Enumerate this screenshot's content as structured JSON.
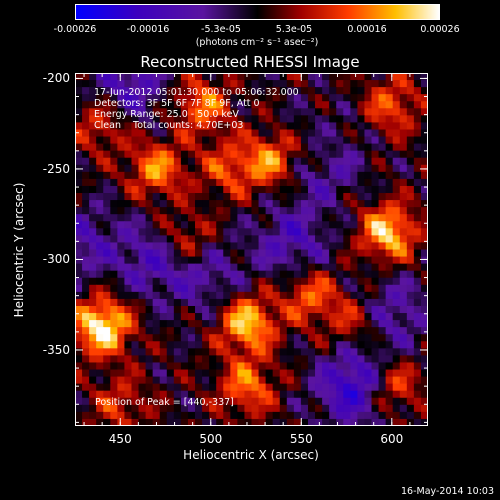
{
  "colorbar": {
    "ticks": [
      "-0.00026",
      "-0.00016",
      "-5.3e-05",
      "5.3e-05",
      "0.00016",
      "0.00026"
    ],
    "unit": "(photons cm⁻² s⁻¹ asec⁻²)"
  },
  "chart_data": {
    "type": "heatmap",
    "title": "Reconstructed RHESSI Image",
    "xlabel": "Heliocentric X (arcsec)",
    "ylabel": "Heliocentric Y (arcsec)",
    "xlim": [
      425,
      620
    ],
    "ylim": [
      -392,
      -197
    ],
    "xticks": [
      450,
      500,
      550,
      600
    ],
    "yticks": [
      -200,
      -250,
      -300,
      -350
    ],
    "xtick_labels": [
      "450",
      "500",
      "550",
      "600"
    ],
    "ytick_labels": [
      "-200",
      "-250",
      "-300",
      "-350"
    ],
    "colormap": "blue-purple-black-red-orange-yellow-white",
    "value_range": [
      -0.00026,
      0.00026
    ],
    "annotations": {
      "time": "17-Jun-2012 05:01:30.000 to 05:06:32.000",
      "detectors": "Detectors: 3F 5F 6F 7F 8F 9F, Att 0",
      "energy": "Energy Range: 25.0 - 50.0 keV",
      "method": "Clean    Total counts: 4.70E+03",
      "peak": "Position of Peak = [440,-337]"
    }
  },
  "footer": "16-May-2014 10:03"
}
